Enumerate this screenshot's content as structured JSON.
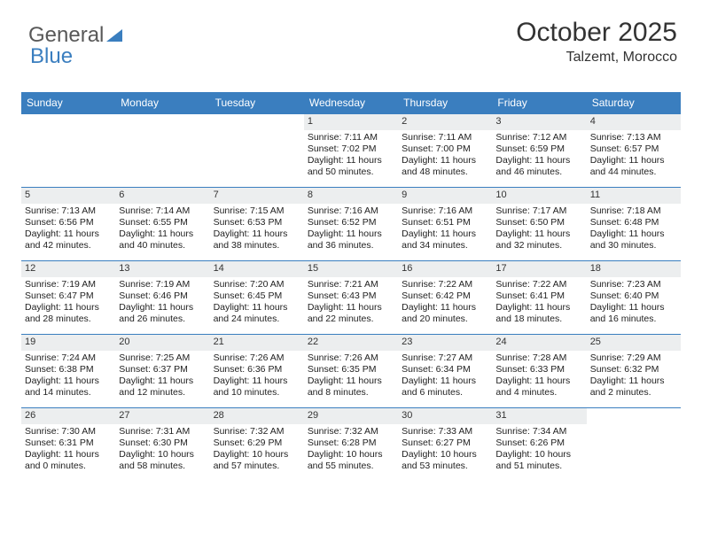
{
  "logo": {
    "text1": "General",
    "text2": "Blue"
  },
  "title": "October 2025",
  "location": "Talzemt, Morocco",
  "colors": {
    "header_bg": "#3a7ebf",
    "daynum_bg": "#eceeef",
    "row_border": "#3a7ebf",
    "text": "#222222"
  },
  "weekdays": [
    "Sunday",
    "Monday",
    "Tuesday",
    "Wednesday",
    "Thursday",
    "Friday",
    "Saturday"
  ],
  "weeks": [
    [
      null,
      null,
      null,
      {
        "n": "1",
        "sr": "7:11 AM",
        "ss": "7:02 PM",
        "dl": "11 hours and 50 minutes."
      },
      {
        "n": "2",
        "sr": "7:11 AM",
        "ss": "7:00 PM",
        "dl": "11 hours and 48 minutes."
      },
      {
        "n": "3",
        "sr": "7:12 AM",
        "ss": "6:59 PM",
        "dl": "11 hours and 46 minutes."
      },
      {
        "n": "4",
        "sr": "7:13 AM",
        "ss": "6:57 PM",
        "dl": "11 hours and 44 minutes."
      }
    ],
    [
      {
        "n": "5",
        "sr": "7:13 AM",
        "ss": "6:56 PM",
        "dl": "11 hours and 42 minutes."
      },
      {
        "n": "6",
        "sr": "7:14 AM",
        "ss": "6:55 PM",
        "dl": "11 hours and 40 minutes."
      },
      {
        "n": "7",
        "sr": "7:15 AM",
        "ss": "6:53 PM",
        "dl": "11 hours and 38 minutes."
      },
      {
        "n": "8",
        "sr": "7:16 AM",
        "ss": "6:52 PM",
        "dl": "11 hours and 36 minutes."
      },
      {
        "n": "9",
        "sr": "7:16 AM",
        "ss": "6:51 PM",
        "dl": "11 hours and 34 minutes."
      },
      {
        "n": "10",
        "sr": "7:17 AM",
        "ss": "6:50 PM",
        "dl": "11 hours and 32 minutes."
      },
      {
        "n": "11",
        "sr": "7:18 AM",
        "ss": "6:48 PM",
        "dl": "11 hours and 30 minutes."
      }
    ],
    [
      {
        "n": "12",
        "sr": "7:19 AM",
        "ss": "6:47 PM",
        "dl": "11 hours and 28 minutes."
      },
      {
        "n": "13",
        "sr": "7:19 AM",
        "ss": "6:46 PM",
        "dl": "11 hours and 26 minutes."
      },
      {
        "n": "14",
        "sr": "7:20 AM",
        "ss": "6:45 PM",
        "dl": "11 hours and 24 minutes."
      },
      {
        "n": "15",
        "sr": "7:21 AM",
        "ss": "6:43 PM",
        "dl": "11 hours and 22 minutes."
      },
      {
        "n": "16",
        "sr": "7:22 AM",
        "ss": "6:42 PM",
        "dl": "11 hours and 20 minutes."
      },
      {
        "n": "17",
        "sr": "7:22 AM",
        "ss": "6:41 PM",
        "dl": "11 hours and 18 minutes."
      },
      {
        "n": "18",
        "sr": "7:23 AM",
        "ss": "6:40 PM",
        "dl": "11 hours and 16 minutes."
      }
    ],
    [
      {
        "n": "19",
        "sr": "7:24 AM",
        "ss": "6:38 PM",
        "dl": "11 hours and 14 minutes."
      },
      {
        "n": "20",
        "sr": "7:25 AM",
        "ss": "6:37 PM",
        "dl": "11 hours and 12 minutes."
      },
      {
        "n": "21",
        "sr": "7:26 AM",
        "ss": "6:36 PM",
        "dl": "11 hours and 10 minutes."
      },
      {
        "n": "22",
        "sr": "7:26 AM",
        "ss": "6:35 PM",
        "dl": "11 hours and 8 minutes."
      },
      {
        "n": "23",
        "sr": "7:27 AM",
        "ss": "6:34 PM",
        "dl": "11 hours and 6 minutes."
      },
      {
        "n": "24",
        "sr": "7:28 AM",
        "ss": "6:33 PM",
        "dl": "11 hours and 4 minutes."
      },
      {
        "n": "25",
        "sr": "7:29 AM",
        "ss": "6:32 PM",
        "dl": "11 hours and 2 minutes."
      }
    ],
    [
      {
        "n": "26",
        "sr": "7:30 AM",
        "ss": "6:31 PM",
        "dl": "11 hours and 0 minutes."
      },
      {
        "n": "27",
        "sr": "7:31 AM",
        "ss": "6:30 PM",
        "dl": "10 hours and 58 minutes."
      },
      {
        "n": "28",
        "sr": "7:32 AM",
        "ss": "6:29 PM",
        "dl": "10 hours and 57 minutes."
      },
      {
        "n": "29",
        "sr": "7:32 AM",
        "ss": "6:28 PM",
        "dl": "10 hours and 55 minutes."
      },
      {
        "n": "30",
        "sr": "7:33 AM",
        "ss": "6:27 PM",
        "dl": "10 hours and 53 minutes."
      },
      {
        "n": "31",
        "sr": "7:34 AM",
        "ss": "6:26 PM",
        "dl": "10 hours and 51 minutes."
      },
      null
    ]
  ],
  "labels": {
    "sunrise": "Sunrise:",
    "sunset": "Sunset:",
    "daylight": "Daylight:"
  }
}
